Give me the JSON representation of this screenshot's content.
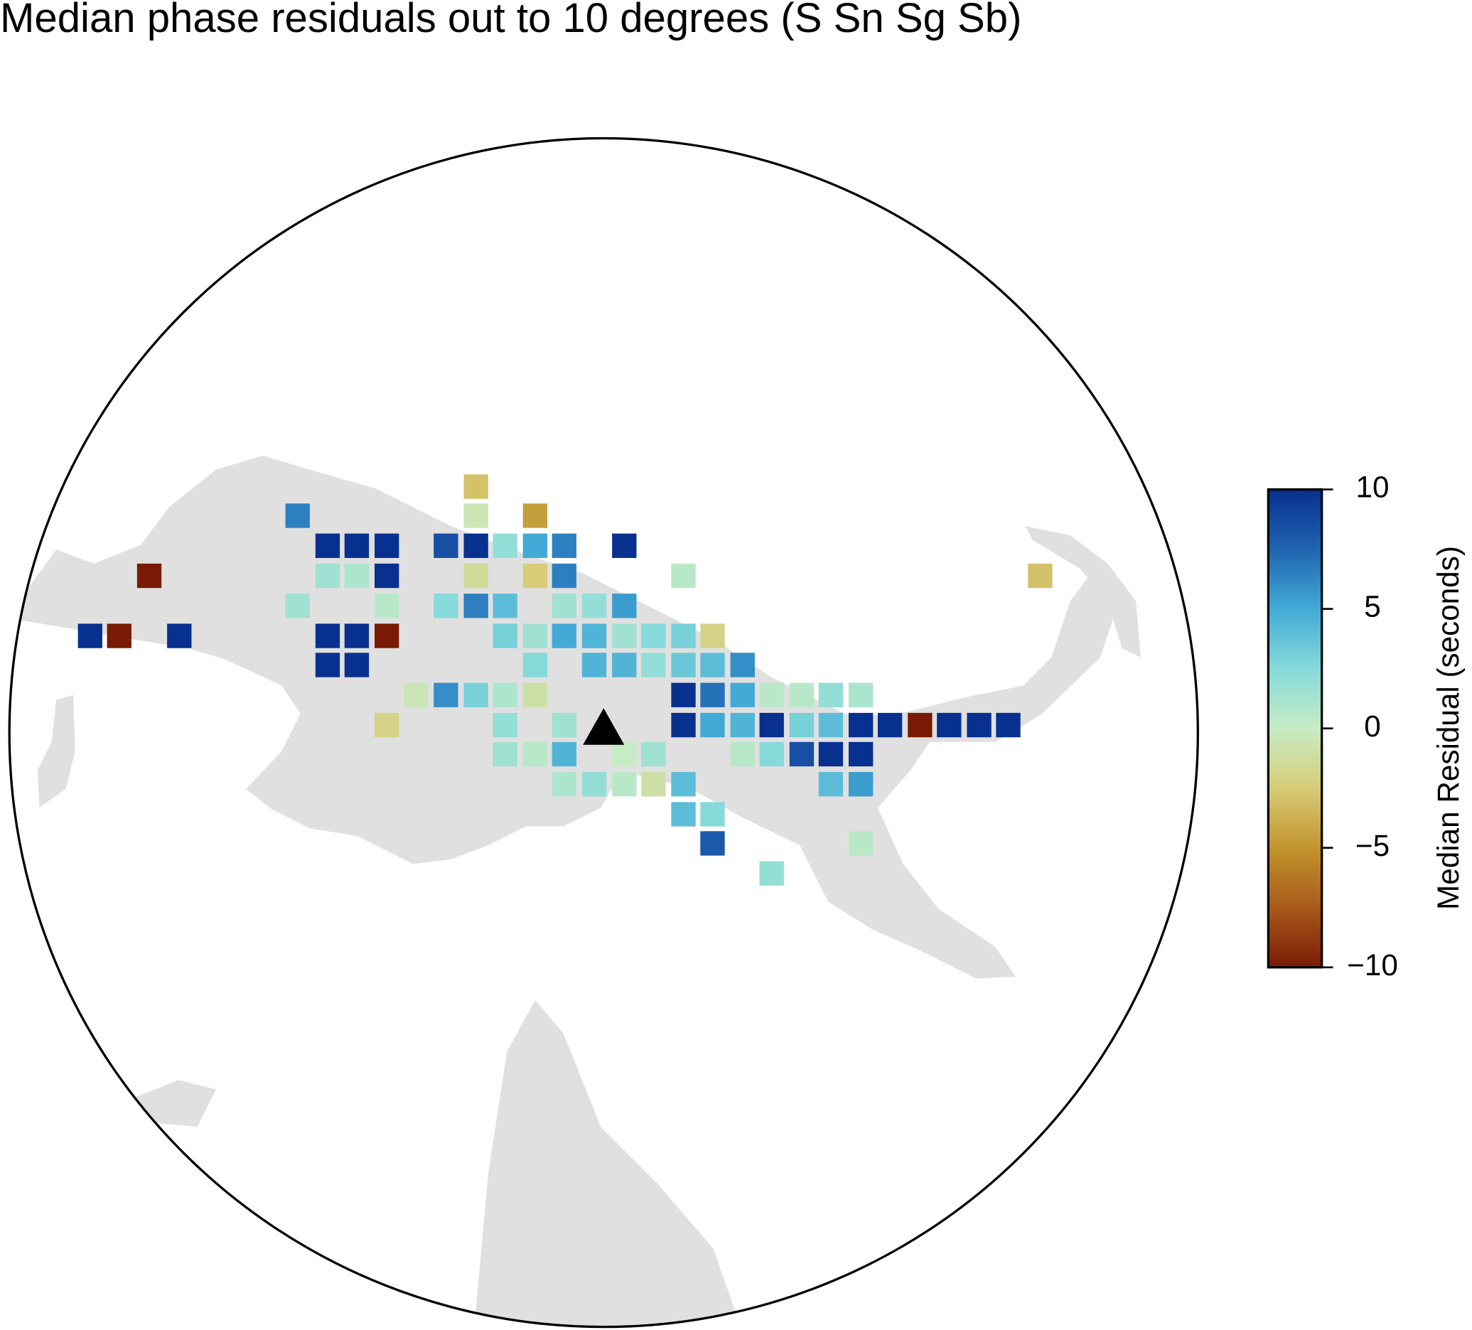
{
  "chart_data": {
    "type": "residual-map",
    "title": "Median phase residuals out to 10 degrees (S Sn Sg Sb)",
    "ylabel": "Median Residual (seconds)",
    "ylim": [
      -10,
      10
    ],
    "yticks": [
      {
        "value": -10,
        "label": "−10"
      },
      {
        "value": -5,
        "label": "−5"
      },
      0,
      5,
      10
    ],
    "colormap": [
      "#7a1a05",
      "#a85a1a",
      "#c2942e",
      "#d8cc78",
      "#c6ecc4",
      "#86dada",
      "#42aad6",
      "#1f64b0",
      "#08308f"
    ],
    "values": [
      -3,
      6.5,
      -0.5,
      -4.5,
      10,
      10,
      10,
      8.5,
      10,
      2,
      5,
      6.5,
      10,
      -10,
      1.5,
      1,
      10,
      -1.5,
      -2.5,
      6.5,
      0.5,
      -3,
      1.5,
      0.5,
      2.5,
      6.5,
      4,
      1.5,
      2,
      5.5,
      10,
      -10,
      10,
      10,
      10,
      -10,
      3,
      1.5,
      5,
      4.5,
      1.5,
      2.5,
      3,
      -2,
      10,
      10,
      2.5,
      4.5,
      4.5,
      2,
      3.5,
      4,
      6,
      -0.5,
      6,
      3,
      1,
      -1,
      10,
      7,
      5,
      0.5,
      0.5,
      2,
      1,
      -2,
      2,
      1.5,
      10,
      5,
      4.5,
      10,
      3,
      4,
      10,
      10,
      -10,
      10,
      10,
      10,
      1.5,
      0.5,
      4.5,
      0,
      1.5,
      0.5,
      2.5,
      8.5,
      10,
      10,
      1,
      2,
      0.5,
      -1,
      4,
      4,
      5.5,
      4,
      2.5,
      8,
      0.5,
      2
    ]
  }
}
